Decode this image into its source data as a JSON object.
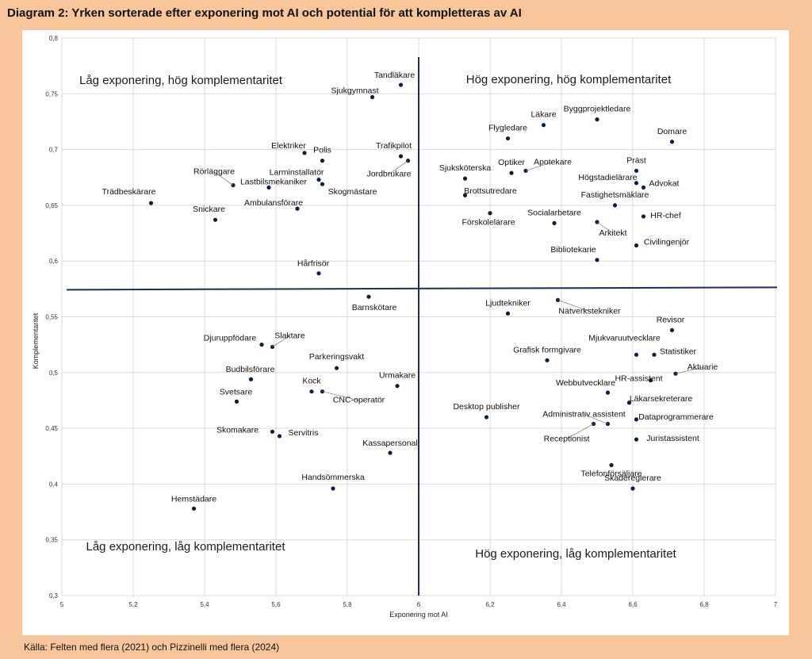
{
  "title": "Diagram 2: Yrken sorterade efter exponering mot AI och potential för att kompletteras av AI",
  "source": "Källa: Felten med flera (2021) och Pizzinelli med flera (2024)",
  "colors": {
    "background": "#f9c59a",
    "points": "#0b1f3f",
    "quadrant_lines": "#1c2f5a"
  },
  "chart_data": {
    "type": "scatter",
    "xlabel": "Exponering mot AI",
    "ylabel": "Komplementaritet",
    "xlim": [
      5,
      7
    ],
    "ylim": [
      0.3,
      0.8
    ],
    "xticks": [
      "5",
      "5,2",
      "5,4",
      "5,6",
      "5,8",
      "6",
      "6,2",
      "6,4",
      "6,6",
      "6,8",
      "7"
    ],
    "yticks": [
      "0,3",
      "0,35",
      "0,4",
      "0,45",
      "0,5",
      "0,55",
      "0,6",
      "0,65",
      "0,7",
      "0,75",
      "0,8"
    ],
    "grid": true,
    "quadrant_divider": {
      "x": 6.0,
      "y": 0.575
    },
    "quadrant_labels": [
      "Låg exponering, hög komplementaritet",
      "Hög exponering, hög komplementaritet",
      "Låg exponering, låg komplementaritet",
      "Hög exponering, låg komplementaritet"
    ],
    "points": [
      {
        "label": "Tandläkare",
        "x": 5.95,
        "y": 0.758
      },
      {
        "label": "Sjukgymnast",
        "x": 5.87,
        "y": 0.747
      },
      {
        "label": "Läkare",
        "x": 6.35,
        "y": 0.722
      },
      {
        "label": "Byggprojektledare",
        "x": 6.5,
        "y": 0.727
      },
      {
        "label": "Domare",
        "x": 6.71,
        "y": 0.707
      },
      {
        "label": "Flygledare",
        "x": 6.25,
        "y": 0.71
      },
      {
        "label": "Elektriker",
        "x": 5.68,
        "y": 0.697
      },
      {
        "label": "Polis",
        "x": 5.73,
        "y": 0.69
      },
      {
        "label": "Trafikpilot",
        "x": 5.95,
        "y": 0.694
      },
      {
        "label": "Jordbrukare",
        "x": 5.97,
        "y": 0.69
      },
      {
        "label": "Larminstallatör",
        "x": 5.72,
        "y": 0.673
      },
      {
        "label": "Skogmästare",
        "x": 5.73,
        "y": 0.669
      },
      {
        "label": "Rörläggare",
        "x": 5.48,
        "y": 0.668
      },
      {
        "label": "Lastbilsmekaniker",
        "x": 5.58,
        "y": 0.666
      },
      {
        "label": "Trädbeskärare",
        "x": 5.25,
        "y": 0.652
      },
      {
        "label": "Snickare",
        "x": 5.43,
        "y": 0.637
      },
      {
        "label": "Ambulansförare",
        "x": 5.66,
        "y": 0.647
      },
      {
        "label": "Sjuksköterska",
        "x": 6.13,
        "y": 0.674
      },
      {
        "label": "Optiker",
        "x": 6.26,
        "y": 0.679
      },
      {
        "label": "Apotekare",
        "x": 6.3,
        "y": 0.681
      },
      {
        "label": "Präst",
        "x": 6.61,
        "y": 0.681
      },
      {
        "label": "Högstadielärare",
        "x": 6.61,
        "y": 0.67
      },
      {
        "label": "Advokat",
        "x": 6.63,
        "y": 0.666
      },
      {
        "label": "Brottsutredare",
        "x": 6.13,
        "y": 0.659
      },
      {
        "label": "Fastighetsmäklare",
        "x": 6.55,
        "y": 0.65
      },
      {
        "label": "Förskolelärare",
        "x": 6.2,
        "y": 0.643
      },
      {
        "label": "Socialarbetare",
        "x": 6.38,
        "y": 0.634
      },
      {
        "label": "HR-chef",
        "x": 6.63,
        "y": 0.64
      },
      {
        "label": "Arkitekt",
        "x": 6.5,
        "y": 0.635
      },
      {
        "label": "Civilingenjör",
        "x": 6.61,
        "y": 0.614
      },
      {
        "label": "Bibliotekarie",
        "x": 6.5,
        "y": 0.601
      },
      {
        "label": "Hårfrisör",
        "x": 5.72,
        "y": 0.589
      },
      {
        "label": "Barnskötare",
        "x": 5.86,
        "y": 0.568
      },
      {
        "label": "Ljudtekniker",
        "x": 6.25,
        "y": 0.553
      },
      {
        "label": "Nätverkstekniker",
        "x": 6.39,
        "y": 0.565
      },
      {
        "label": "Revisor",
        "x": 6.71,
        "y": 0.538
      },
      {
        "label": "Djuruppfödare",
        "x": 5.56,
        "y": 0.525
      },
      {
        "label": "Slaktare",
        "x": 5.59,
        "y": 0.523
      },
      {
        "label": "Mjukvaruutvecklare",
        "x": 6.61,
        "y": 0.516
      },
      {
        "label": "Statistiker",
        "x": 6.66,
        "y": 0.516
      },
      {
        "label": "Grafisk formgivare",
        "x": 6.36,
        "y": 0.511
      },
      {
        "label": "Parkeringsvakt",
        "x": 5.77,
        "y": 0.504
      },
      {
        "label": "Budbilsförare",
        "x": 5.53,
        "y": 0.494
      },
      {
        "label": "HR-assistent",
        "x": 6.65,
        "y": 0.493
      },
      {
        "label": "Aktuarie",
        "x": 6.72,
        "y": 0.499
      },
      {
        "label": "Urmakare",
        "x": 5.94,
        "y": 0.488
      },
      {
        "label": "Kock",
        "x": 5.7,
        "y": 0.483
      },
      {
        "label": "CNC-operatör",
        "x": 5.73,
        "y": 0.483
      },
      {
        "label": "Webbutvecklare",
        "x": 6.53,
        "y": 0.482
      },
      {
        "label": "Svetsare",
        "x": 5.49,
        "y": 0.474
      },
      {
        "label": "Läkarsekreterare",
        "x": 6.59,
        "y": 0.473
      },
      {
        "label": "Desktop publisher",
        "x": 6.19,
        "y": 0.46
      },
      {
        "label": "Dataprogrammerare",
        "x": 6.61,
        "y": 0.458
      },
      {
        "label": "Administrativ assistent",
        "x": 6.53,
        "y": 0.454
      },
      {
        "label": "Receptionist",
        "x": 6.49,
        "y": 0.454
      },
      {
        "label": "Skomakare",
        "x": 5.59,
        "y": 0.447
      },
      {
        "label": "Servitris",
        "x": 5.61,
        "y": 0.443
      },
      {
        "label": "Juristassistent",
        "x": 6.61,
        "y": 0.44
      },
      {
        "label": "Kassapersonal",
        "x": 5.92,
        "y": 0.428
      },
      {
        "label": "Telefonförsäljare",
        "x": 6.54,
        "y": 0.417
      },
      {
        "label": "Handsömmerska",
        "x": 5.76,
        "y": 0.396
      },
      {
        "label": "Skadereglerare",
        "x": 6.6,
        "y": 0.396
      },
      {
        "label": "Hemstädare",
        "x": 5.37,
        "y": 0.378
      }
    ]
  }
}
